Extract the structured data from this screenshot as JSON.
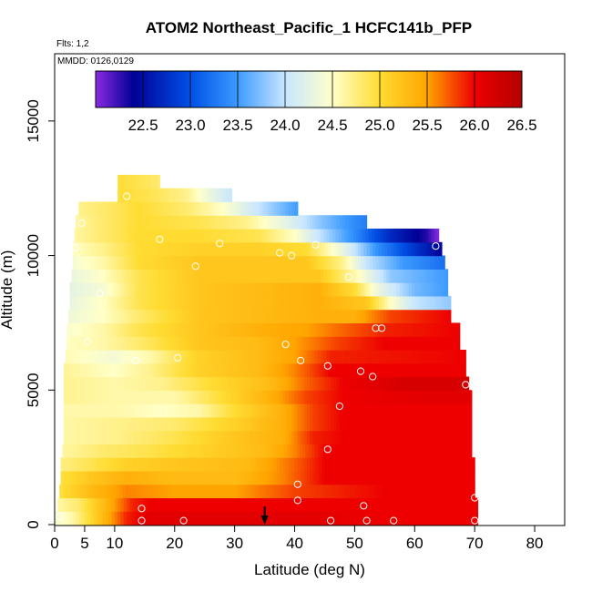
{
  "chart_data": {
    "type": "heatmap",
    "title": "ATOM2 Northeast_Pacific_1 HCFC141b_PFP",
    "flights_note": "Flts: 1,2",
    "dates_note": "MMDD: 0126,0129",
    "xlabel": "Latitude (deg N)",
    "ylabel": "Altitude (m)",
    "xlim": [
      0,
      85
    ],
    "ylim": [
      0,
      17500
    ],
    "x_ticks": [
      0,
      5,
      10,
      20,
      30,
      40,
      50,
      60,
      70,
      80
    ],
    "y_ticks": [
      0,
      5000,
      10000,
      15000
    ],
    "colorbar": {
      "range": [
        22.0,
        26.5
      ],
      "ticks": [
        22.5,
        23.0,
        23.5,
        24.0,
        24.5,
        25.0,
        25.5,
        26.0,
        26.5
      ]
    },
    "colors": {
      "purple": "#8a2be2",
      "navy": "#000096",
      "blue": "#0050e6",
      "sky": "#3c9bff",
      "light_blue": "#c8e6ff",
      "pale_yellow": "#ffffc8",
      "yellow": "#ffdc32",
      "orange": "#ffa500",
      "red": "#ee0000",
      "dark_red": "#b40000"
    },
    "arrow_marker_latitude": 35,
    "heatmap_rows": [
      {
        "z0": 0,
        "z1": 500,
        "lat_start": 0,
        "lat_end": 70.5,
        "values": [
          [
            0,
            24.4
          ],
          [
            3,
            24.6
          ],
          [
            8,
            25.3
          ],
          [
            12,
            25.9
          ],
          [
            16,
            26.1
          ],
          [
            40,
            26.1
          ],
          [
            55,
            26.0
          ],
          [
            70.5,
            26.0
          ]
        ]
      },
      {
        "z0": 500,
        "z1": 1000,
        "lat_start": 0.5,
        "lat_end": 70.5,
        "values": [
          [
            0,
            24.6
          ],
          [
            4,
            24.8
          ],
          [
            9,
            25.4
          ],
          [
            13,
            25.9
          ],
          [
            16,
            26.0
          ],
          [
            40,
            26.0
          ],
          [
            55,
            26.0
          ],
          [
            70.5,
            26.0
          ]
        ]
      },
      {
        "z0": 1000,
        "z1": 1500,
        "lat_start": 0.8,
        "lat_end": 70,
        "values": [
          [
            0,
            24.9
          ],
          [
            6,
            25.3
          ],
          [
            12,
            25.6
          ],
          [
            20,
            25.5
          ],
          [
            30,
            25.5
          ],
          [
            40,
            25.8
          ],
          [
            55,
            26.0
          ],
          [
            70,
            26.0
          ]
        ]
      },
      {
        "z0": 1500,
        "z1": 2000,
        "lat_start": 1,
        "lat_end": 70,
        "values": [
          [
            0,
            24.9
          ],
          [
            6,
            25.2
          ],
          [
            12,
            25.4
          ],
          [
            20,
            25.3
          ],
          [
            30,
            25.3
          ],
          [
            38,
            25.6
          ],
          [
            45,
            26.0
          ],
          [
            70,
            26.0
          ]
        ]
      },
      {
        "z0": 2000,
        "z1": 2500,
        "lat_start": 1,
        "lat_end": 70,
        "values": [
          [
            0,
            24.7
          ],
          [
            6,
            24.9
          ],
          [
            12,
            25.1
          ],
          [
            20,
            25.2
          ],
          [
            32,
            25.3
          ],
          [
            40,
            25.7
          ],
          [
            45,
            26.0
          ],
          [
            70,
            26.0
          ]
        ]
      },
      {
        "z0": 2500,
        "z1": 3000,
        "lat_start": 1.3,
        "lat_end": 69.5,
        "values": [
          [
            0,
            24.6
          ],
          [
            8,
            24.8
          ],
          [
            15,
            24.9
          ],
          [
            25,
            25.1
          ],
          [
            35,
            25.3
          ],
          [
            40,
            25.6
          ],
          [
            45,
            26.0
          ],
          [
            69.5,
            26.0
          ]
        ]
      },
      {
        "z0": 3000,
        "z1": 3500,
        "lat_start": 1.5,
        "lat_end": 69.5,
        "values": [
          [
            0,
            24.6
          ],
          [
            10,
            24.7
          ],
          [
            20,
            24.9
          ],
          [
            30,
            25.2
          ],
          [
            38,
            25.4
          ],
          [
            43,
            25.9
          ],
          [
            48,
            26.0
          ],
          [
            69.5,
            26.0
          ]
        ]
      },
      {
        "z0": 3500,
        "z1": 4000,
        "lat_start": 1.5,
        "lat_end": 69.5,
        "values": [
          [
            0,
            24.6
          ],
          [
            10,
            24.7
          ],
          [
            20,
            24.8
          ],
          [
            30,
            25.1
          ],
          [
            38,
            25.4
          ],
          [
            43,
            25.8
          ],
          [
            48,
            26.0
          ],
          [
            69.5,
            26.0
          ]
        ]
      },
      {
        "z0": 4000,
        "z1": 4500,
        "lat_start": 1.5,
        "lat_end": 69.5,
        "values": [
          [
            0,
            24.6
          ],
          [
            10,
            24.6
          ],
          [
            18,
            24.5
          ],
          [
            24,
            24.6
          ],
          [
            30,
            25.0
          ],
          [
            38,
            25.4
          ],
          [
            43,
            25.8
          ],
          [
            48,
            26.0
          ],
          [
            69.5,
            26.0
          ]
        ]
      },
      {
        "z0": 4500,
        "z1": 5000,
        "lat_start": 1.5,
        "lat_end": 69.5,
        "values": [
          [
            0,
            24.7
          ],
          [
            10,
            24.6
          ],
          [
            20,
            24.6
          ],
          [
            28,
            25.0
          ],
          [
            36,
            25.4
          ],
          [
            42,
            25.8
          ],
          [
            48,
            26.0
          ],
          [
            62,
            26.1
          ],
          [
            69.5,
            26.1
          ]
        ]
      },
      {
        "z0": 5000,
        "z1": 5500,
        "lat_start": 1.5,
        "lat_end": 69,
        "values": [
          [
            0,
            24.7
          ],
          [
            10,
            24.6
          ],
          [
            18,
            24.7
          ],
          [
            26,
            25.0
          ],
          [
            36,
            25.3
          ],
          [
            42,
            25.7
          ],
          [
            48,
            26.0
          ],
          [
            58,
            26.2
          ],
          [
            69,
            26.2
          ]
        ]
      },
      {
        "z0": 5500,
        "z1": 6000,
        "lat_start": 1.5,
        "lat_end": 68.5,
        "values": [
          [
            0,
            24.7
          ],
          [
            10,
            24.5
          ],
          [
            16,
            24.7
          ],
          [
            24,
            25.1
          ],
          [
            34,
            25.3
          ],
          [
            40,
            25.6
          ],
          [
            46,
            26.0
          ],
          [
            68.5,
            26.0
          ]
        ]
      },
      {
        "z0": 6000,
        "z1": 6500,
        "lat_start": 1.8,
        "lat_end": 68.5,
        "values": [
          [
            0,
            24.6
          ],
          [
            10,
            24.4
          ],
          [
            16,
            24.6
          ],
          [
            24,
            25.1
          ],
          [
            34,
            25.3
          ],
          [
            40,
            25.5
          ],
          [
            46,
            25.9
          ],
          [
            68.5,
            26.0
          ]
        ]
      },
      {
        "z0": 6500,
        "z1": 7000,
        "lat_start": 2,
        "lat_end": 67.5,
        "values": [
          [
            0,
            24.5
          ],
          [
            8,
            24.6
          ],
          [
            14,
            24.8
          ],
          [
            24,
            25.2
          ],
          [
            34,
            25.3
          ],
          [
            40,
            25.5
          ],
          [
            47,
            25.8
          ],
          [
            55,
            26.0
          ],
          [
            67.5,
            26.0
          ]
        ]
      },
      {
        "z0": 7000,
        "z1": 7500,
        "lat_start": 2,
        "lat_end": 67.5,
        "values": [
          [
            0,
            24.4
          ],
          [
            8,
            24.6
          ],
          [
            14,
            24.9
          ],
          [
            24,
            25.2
          ],
          [
            34,
            25.4
          ],
          [
            42,
            25.5
          ],
          [
            48,
            25.7
          ],
          [
            55,
            25.9
          ],
          [
            67.5,
            26.0
          ]
        ]
      },
      {
        "z0": 7500,
        "z1": 8000,
        "lat_start": 2.3,
        "lat_end": 66,
        "values": [
          [
            0,
            24.3
          ],
          [
            8,
            24.5
          ],
          [
            14,
            24.8
          ],
          [
            24,
            25.2
          ],
          [
            34,
            25.3
          ],
          [
            44,
            25.4
          ],
          [
            50,
            25.4
          ],
          [
            56,
            25.8
          ],
          [
            66,
            26.0
          ]
        ]
      },
      {
        "z0": 8000,
        "z1": 8500,
        "lat_start": 2.5,
        "lat_end": 66,
        "values": [
          [
            0,
            24.2
          ],
          [
            8,
            24.5
          ],
          [
            14,
            24.9
          ],
          [
            24,
            25.2
          ],
          [
            34,
            25.3
          ],
          [
            44,
            25.4
          ],
          [
            52,
            25.2
          ],
          [
            56,
            24.5
          ],
          [
            60,
            24.0
          ],
          [
            66,
            23.8
          ]
        ]
      },
      {
        "z0": 8500,
        "z1": 9000,
        "lat_start": 2.5,
        "lat_end": 65.5,
        "values": [
          [
            0,
            24.2
          ],
          [
            8,
            24.4
          ],
          [
            14,
            24.9
          ],
          [
            24,
            25.2
          ],
          [
            34,
            25.3
          ],
          [
            44,
            25.4
          ],
          [
            50,
            25.0
          ],
          [
            54,
            24.3
          ],
          [
            60,
            23.7
          ],
          [
            65.5,
            23.5
          ]
        ]
      },
      {
        "z0": 9000,
        "z1": 9500,
        "lat_start": 2.8,
        "lat_end": 65.5,
        "values": [
          [
            0,
            24.2
          ],
          [
            8,
            24.5
          ],
          [
            14,
            24.9
          ],
          [
            24,
            25.2
          ],
          [
            34,
            25.2
          ],
          [
            44,
            25.2
          ],
          [
            50,
            24.6
          ],
          [
            56,
            23.8
          ],
          [
            62,
            23.6
          ],
          [
            65.5,
            23.5
          ]
        ]
      },
      {
        "z0": 9500,
        "z1": 10000,
        "lat_start": 3,
        "lat_end": 65,
        "values": [
          [
            0,
            24.3
          ],
          [
            8,
            24.6
          ],
          [
            14,
            25.0
          ],
          [
            24,
            25.2
          ],
          [
            34,
            25.2
          ],
          [
            42,
            25.2
          ],
          [
            48,
            24.7
          ],
          [
            52,
            24.0
          ],
          [
            58,
            23.5
          ],
          [
            65,
            23.2
          ]
        ]
      },
      {
        "z0": 10000,
        "z1": 10500,
        "lat_start": 3,
        "lat_end": 64.5,
        "values": [
          [
            0,
            24.4
          ],
          [
            8,
            24.7
          ],
          [
            14,
            25.0
          ],
          [
            24,
            25.1
          ],
          [
            34,
            25.1
          ],
          [
            42,
            25.0
          ],
          [
            48,
            24.3
          ],
          [
            54,
            23.4
          ],
          [
            60,
            22.8
          ],
          [
            64.5,
            22.4
          ]
        ]
      },
      {
        "z0": 10500,
        "z1": 11000,
        "lat_start": 3.3,
        "lat_end": 64,
        "values": [
          [
            0,
            24.5
          ],
          [
            8,
            24.8
          ],
          [
            14,
            25.0
          ],
          [
            24,
            25.0
          ],
          [
            34,
            24.9
          ],
          [
            40,
            24.5
          ],
          [
            44,
            24.0
          ],
          [
            50,
            23.4
          ],
          [
            56,
            22.7
          ],
          [
            62,
            22.3
          ],
          [
            64,
            22.0
          ]
        ]
      },
      {
        "z0": 11000,
        "z1": 11500,
        "lat_start": 3.5,
        "lat_end": 52,
        "values": [
          [
            0,
            24.5
          ],
          [
            8,
            24.8
          ],
          [
            14,
            25.0
          ],
          [
            24,
            24.9
          ],
          [
            32,
            24.7
          ],
          [
            38,
            24.3
          ],
          [
            44,
            23.8
          ],
          [
            50,
            23.4
          ],
          [
            52,
            23.3
          ]
        ]
      },
      {
        "z0": 11500,
        "z1": 12000,
        "lat_start": 4,
        "lat_end": 40.5,
        "values": [
          [
            0,
            24.6
          ],
          [
            8,
            24.8
          ],
          [
            14,
            25.0
          ],
          [
            22,
            24.8
          ],
          [
            28,
            24.5
          ],
          [
            34,
            24.0
          ],
          [
            40.5,
            23.5
          ]
        ]
      },
      {
        "z0": 12000,
        "z1": 12500,
        "lat_start": 10.5,
        "lat_end": 29.5,
        "values": [
          [
            10,
            25.0
          ],
          [
            16,
            24.9
          ],
          [
            22,
            24.7
          ],
          [
            26,
            24.3
          ],
          [
            29.5,
            24.0
          ]
        ]
      },
      {
        "z0": 12500,
        "z1": 13000,
        "lat_start": 10.5,
        "lat_end": 17.5,
        "values": [
          [
            10,
            25.0
          ],
          [
            14,
            24.9
          ],
          [
            17.5,
            24.8
          ]
        ]
      }
    ],
    "sample_points": [
      [
        0.8,
        300
      ],
      [
        3.5,
        10300
      ],
      [
        4.5,
        11200
      ],
      [
        5.5,
        6800
      ],
      [
        7.5,
        8600
      ],
      [
        12,
        12200
      ],
      [
        13.5,
        6100
      ],
      [
        14.5,
        600
      ],
      [
        14.5,
        150
      ],
      [
        17.5,
        10600
      ],
      [
        20.5,
        6200
      ],
      [
        21.5,
        150
      ],
      [
        23.5,
        9600
      ],
      [
        27.5,
        10450
      ],
      [
        37.5,
        10100
      ],
      [
        38.5,
        6700
      ],
      [
        39.5,
        10000
      ],
      [
        40.5,
        1500
      ],
      [
        40.5,
        900
      ],
      [
        41,
        6100
      ],
      [
        43.5,
        10400
      ],
      [
        45.5,
        5900
      ],
      [
        45.5,
        2800
      ],
      [
        46,
        150
      ],
      [
        47.5,
        4400
      ],
      [
        49,
        9200
      ],
      [
        51,
        5700
      ],
      [
        51.5,
        700
      ],
      [
        52,
        150
      ],
      [
        53,
        5500
      ],
      [
        53.5,
        7300
      ],
      [
        54.5,
        7300
      ],
      [
        56.5,
        150
      ],
      [
        63.5,
        10350
      ],
      [
        68.5,
        5200
      ],
      [
        70,
        1000
      ],
      [
        70,
        150
      ]
    ]
  }
}
